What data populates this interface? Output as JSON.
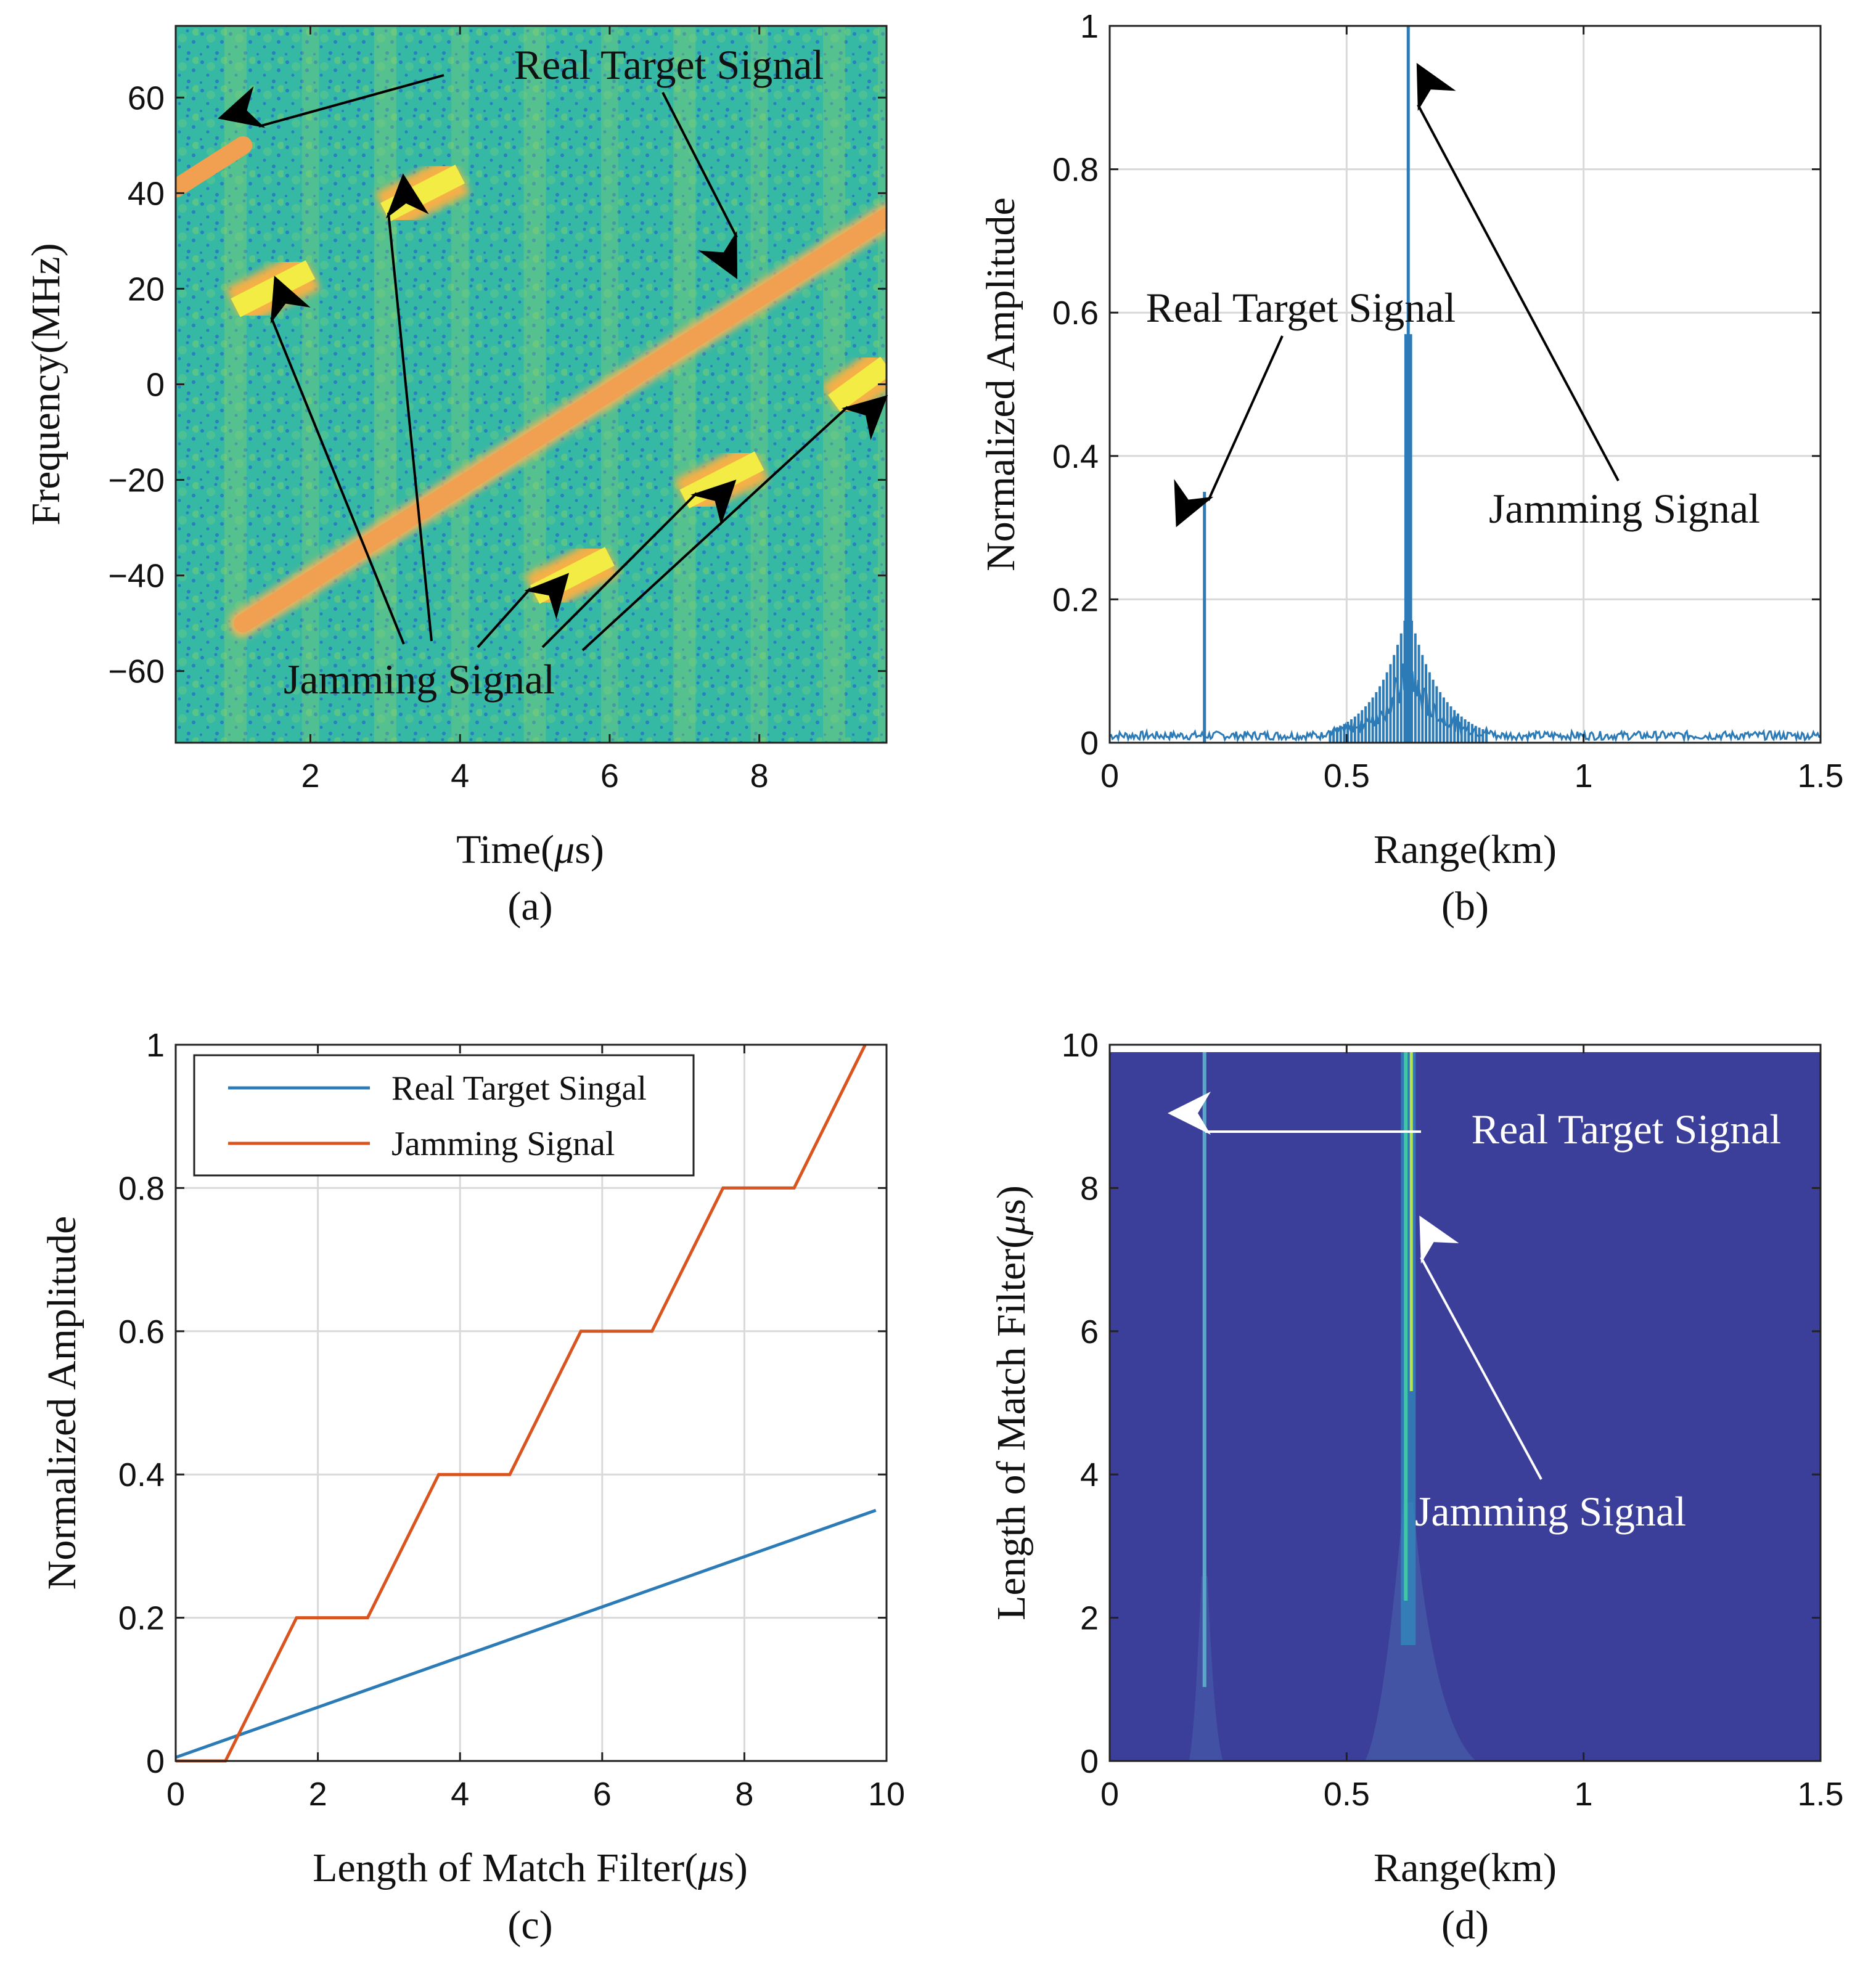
{
  "colors": {
    "blue": "#2c7bb6",
    "orange": "#d9541e",
    "grid": "#d9d9d9",
    "axis": "#222222",
    "spec_bg": "#2fb4a4",
    "spec_signal": "#f0a338",
    "dark_bg": "#3b3f99"
  },
  "chart_data": [
    {
      "id": "a",
      "type": "heatmap",
      "caption": "(a)",
      "xlabel_main": "Time(",
      "xlabel_mu": "μ",
      "xlabel_end": "s)",
      "ylabel": "Frequency(MHz)",
      "xlim": [
        0.2,
        9.7
      ],
      "ylim": [
        -75,
        75
      ],
      "xticks": [
        2,
        4,
        6,
        8
      ],
      "yticks": [
        60,
        40,
        20,
        0,
        -20,
        -40,
        -60
      ],
      "xtick_labels": [
        "2",
        "4",
        "6",
        "8"
      ],
      "ytick_labels": [
        "60",
        "40",
        "20",
        "0",
        "−20",
        "−40",
        "−60"
      ],
      "real_target_chirp": {
        "t": [
          1.1,
          9.7
        ],
        "f": [
          -50,
          35
        ]
      },
      "real_target_wrap": {
        "t": [
          0.2,
          1.1
        ],
        "f": [
          41,
          50
        ]
      },
      "jamming_segments": [
        {
          "t": [
            1.0,
            2.0
          ],
          "f": [
            16,
            24
          ]
        },
        {
          "t": [
            3.0,
            4.0
          ],
          "f": [
            36,
            44
          ]
        },
        {
          "t": [
            5.0,
            6.0
          ],
          "f": [
            -44,
            -36
          ]
        },
        {
          "t": [
            7.0,
            8.0
          ],
          "f": [
            -24,
            -16
          ]
        },
        {
          "t": [
            9.0,
            9.7
          ],
          "f": [
            -4,
            4
          ]
        }
      ],
      "annotations": {
        "real_target": "Real Target Signal",
        "jamming": "Jamming Signal"
      }
    },
    {
      "id": "b",
      "type": "line",
      "caption": "(b)",
      "xlabel": "Range(km)",
      "ylabel": "Normalized Amplitude",
      "xlim": [
        0,
        1.5
      ],
      "ylim": [
        0,
        1
      ],
      "xticks": [
        0,
        0.5,
        1,
        1.5
      ],
      "yticks": [
        0,
        0.2,
        0.4,
        0.6,
        0.8,
        1
      ],
      "xtick_labels": [
        "0",
        "0.5",
        "1",
        "1.5"
      ],
      "ytick_labels": [
        "0",
        "0.2",
        "0.4",
        "0.6",
        "0.8",
        "1"
      ],
      "peaks": [
        {
          "x": 0.2,
          "y": 0.35
        },
        {
          "x": 0.63,
          "y": 1.0
        },
        {
          "x": 0.625,
          "y": 0.57
        },
        {
          "x": 0.635,
          "y": 0.57
        }
      ],
      "noise_floor": 0.01,
      "annotations": {
        "real_target": "Real Target Signal",
        "jamming": "Jamming Signal"
      }
    },
    {
      "id": "c",
      "type": "line",
      "caption": "(c)",
      "xlabel_main": "Length of Match Filter(",
      "xlabel_mu": "μ",
      "xlabel_end": "s)",
      "ylabel": "Normalized Amplitude",
      "xlim": [
        0,
        10
      ],
      "ylim": [
        0,
        1
      ],
      "xticks": [
        0,
        2,
        4,
        6,
        8,
        10
      ],
      "yticks": [
        0,
        0.2,
        0.4,
        0.6,
        0.8,
        1
      ],
      "xtick_labels": [
        "0",
        "2",
        "4",
        "6",
        "8",
        "10"
      ],
      "ytick_labels": [
        "0",
        "0.2",
        "0.4",
        "0.6",
        "0.8",
        "1"
      ],
      "series": [
        {
          "name": "Real Target Singal",
          "x": [
            0,
            9.85
          ],
          "y": [
            0.005,
            0.35
          ]
        },
        {
          "name": "Jamming Signal",
          "x": [
            0,
            0.7,
            1.7,
            2.7,
            3.7,
            4.7,
            5.7,
            6.7,
            7.7,
            8.7,
            9.7
          ],
          "y": [
            0,
            0,
            0.2,
            0.2,
            0.4,
            0.4,
            0.6,
            0.6,
            0.8,
            0.8,
            1.0
          ]
        }
      ]
    },
    {
      "id": "d",
      "type": "heatmap",
      "caption": "(d)",
      "xlabel": "Range(km)",
      "ylabel_main": "Length of Match Filter(",
      "ylabel_mu": "μ",
      "ylabel_end": "s)",
      "xlim": [
        0,
        1.5
      ],
      "ylim": [
        0,
        10
      ],
      "xticks": [
        0,
        0.5,
        1,
        1.5
      ],
      "yticks": [
        0,
        2,
        4,
        6,
        8,
        10
      ],
      "xtick_labels": [
        "0",
        "0.5",
        "1",
        "1.5"
      ],
      "ytick_labels": [
        "0",
        "2",
        "4",
        "6",
        "8",
        "10"
      ],
      "lines": [
        {
          "x": 0.2,
          "label": "real"
        },
        {
          "x": 0.63,
          "label": "jamming"
        }
      ],
      "annotations": {
        "real_target": "Real Target Signal",
        "jamming": "Jamming Signal"
      }
    }
  ]
}
